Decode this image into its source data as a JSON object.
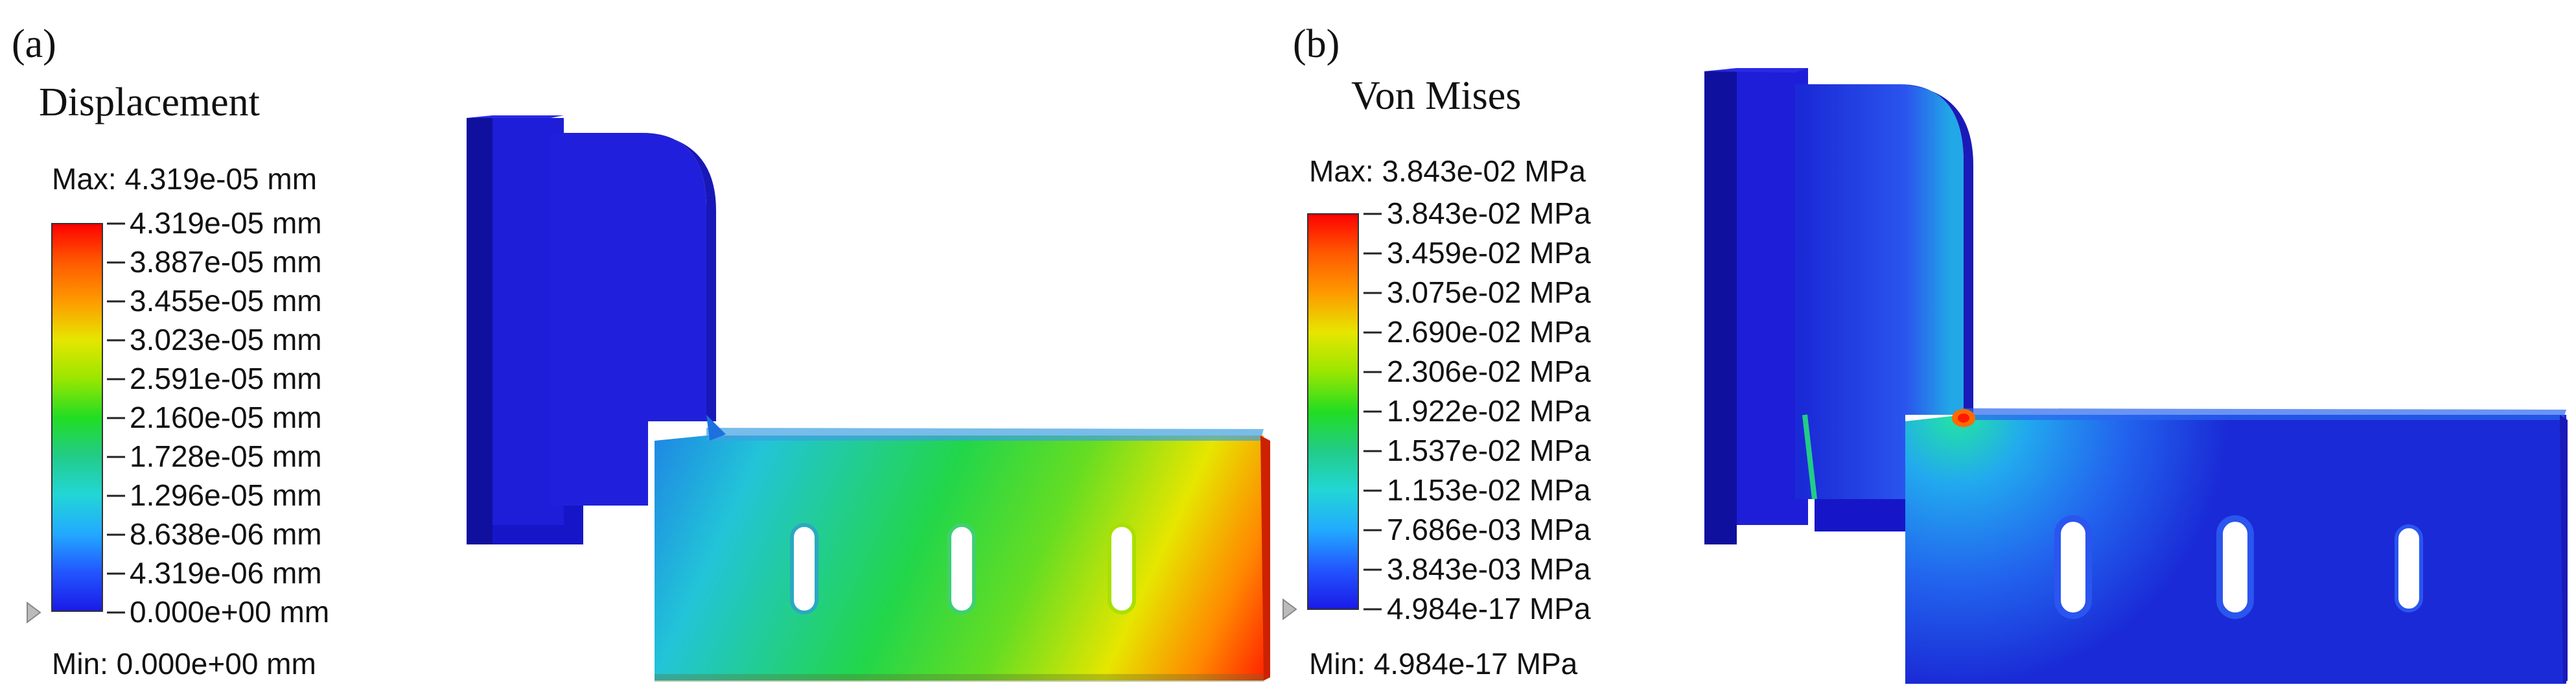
{
  "panels": [
    {
      "label": "(a)",
      "title": "Displacement",
      "max_text": "Max:  4.319e-05 mm",
      "min_text": "Min:  0.000e+00 mm",
      "legend_values": [
        "4.319e-05 mm",
        "3.887e-05 mm",
        "3.455e-05 mm",
        "3.023e-05 mm",
        "2.591e-05 mm",
        "2.160e-05 mm",
        "1.728e-05 mm",
        "1.296e-05 mm",
        "8.638e-06 mm",
        "4.319e-06 mm",
        "0.000e+00 mm"
      ]
    },
    {
      "label": "(b)",
      "title": "Von Mises",
      "max_text": "Max:  3.843e-02 MPa",
      "min_text": "Min:  4.984e-17 MPa",
      "legend_values": [
        "3.843e-02 MPa",
        "3.459e-02 MPa",
        "3.075e-02 MPa",
        "2.690e-02 MPa",
        "2.306e-02 MPa",
        "1.922e-02 MPa",
        "1.537e-02 MPa",
        "1.153e-02 MPa",
        "7.686e-03 MPa",
        "3.843e-03 MPa",
        "4.984e-17 MPa"
      ]
    }
  ],
  "colormap": [
    "#ff0000",
    "#ff5a00",
    "#ff9a00",
    "#e6e600",
    "#9ae600",
    "#22dd22",
    "#22cc66",
    "#22d6c8",
    "#22b4ff",
    "#2255ff",
    "#1a1ae6"
  ]
}
